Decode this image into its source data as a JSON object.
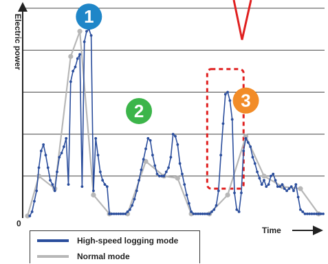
{
  "chart_data": {
    "type": "line",
    "xlabel": "Time",
    "ylabel": "Electric power",
    "origin_label": "0",
    "ylim": [
      0,
      10
    ],
    "grid": true,
    "colors": {
      "high_speed": "#2a4d9c",
      "normal": "#b7b7b7",
      "grid": "#444444",
      "badge_1": "#1f86c8",
      "badge_2": "#3cb54a",
      "badge_3": "#f28c28",
      "highlight": "#e02020"
    },
    "series": [
      {
        "key": "high_speed",
        "x": [
          1,
          2,
          3,
          4,
          5,
          6,
          7,
          8,
          9,
          10,
          11,
          12,
          13,
          14,
          15,
          16,
          17,
          18,
          19,
          20,
          21,
          22,
          23,
          24,
          25,
          26,
          27,
          28,
          29,
          30,
          31,
          32,
          33,
          34,
          35,
          36,
          37,
          38,
          39,
          40,
          41,
          42,
          43,
          44,
          45,
          46,
          47,
          48,
          49,
          50,
          51,
          52,
          53,
          54,
          55,
          56,
          57,
          58,
          59,
          60,
          61,
          62,
          63,
          64,
          65,
          66,
          67,
          68,
          69,
          70,
          71,
          72,
          73,
          74,
          75,
          76,
          77,
          78,
          79,
          80,
          81,
          82,
          83,
          84,
          85,
          86,
          87,
          88,
          89,
          90,
          91,
          92,
          93,
          94,
          95,
          96,
          97,
          98,
          99,
          100,
          101,
          102,
          103,
          104,
          105,
          106,
          107,
          108,
          109,
          110,
          111,
          112,
          113,
          114,
          115,
          116,
          117,
          118,
          119,
          120,
          121,
          122,
          123,
          124,
          125,
          126,
          127,
          128,
          129,
          130
        ],
        "values": [
          0.1,
          0.3,
          0.8,
          1.3,
          2.4,
          3.2,
          3.5,
          3.0,
          2.4,
          1.8,
          1.6,
          1.3,
          2.2,
          2.9,
          3.1,
          3.4,
          3.8,
          1.6,
          6.5,
          7.0,
          7.2,
          7.6,
          7.8,
          1.5,
          8.4,
          8.9,
          9.0,
          8.7,
          1.3,
          3.8,
          3.0,
          2.2,
          1.8,
          1.6,
          1.5,
          0.2,
          0.2,
          0.2,
          0.2,
          0.2,
          0.2,
          0.2,
          0.2,
          0.3,
          0.4,
          0.6,
          0.9,
          1.3,
          1.8,
          2.3,
          2.8,
          3.3,
          3.8,
          3.7,
          3.0,
          2.5,
          2.1,
          2.0,
          2.0,
          2.0,
          2.2,
          2.4,
          2.9,
          4.0,
          3.9,
          3.5,
          2.6,
          2.1,
          1.6,
          1.1,
          0.7,
          0.3,
          0.2,
          0.2,
          0.2,
          0.2,
          0.2,
          0.2,
          0.2,
          0.2,
          0.3,
          0.4,
          0.6,
          1.3,
          3.0,
          4.5,
          5.9,
          6.0,
          5.6,
          4.7,
          1.2,
          0.4,
          0.3,
          1.2,
          3.2,
          3.8,
          3.6,
          3.4,
          2.9,
          2.6,
          2.2,
          1.9,
          1.6,
          1.8,
          1.5,
          1.6,
          2.0,
          2.1,
          1.8,
          1.5,
          1.5,
          1.6,
          1.4,
          1.3,
          1.4,
          1.5,
          1.3,
          1.6,
          1.0,
          0.4,
          0.3,
          0.2,
          0.2,
          0.2,
          0.2,
          0.2,
          0.2,
          0.2,
          0.2,
          0.2
        ]
      },
      {
        "key": "normal",
        "x": [
          0,
          5,
          12,
          19,
          23,
          29,
          36,
          44,
          52,
          60,
          66,
          72,
          80,
          88,
          96,
          104,
          112,
          120,
          128
        ],
        "values": [
          0.1,
          2.0,
          1.4,
          7.7,
          8.9,
          1.1,
          0.2,
          0.2,
          2.7,
          2.0,
          1.9,
          0.2,
          0.2,
          1.1,
          3.9,
          2.0,
          1.5,
          1.4,
          0.2
        ]
      }
    ],
    "legend": [
      {
        "key": "high_speed",
        "label": "High-speed logging mode"
      },
      {
        "key": "normal",
        "label": "Normal mode"
      }
    ],
    "annotations": [
      {
        "label": "1",
        "x": 27,
        "y": 9.6,
        "color_key": "badge_1"
      },
      {
        "label": "2",
        "x": 49,
        "y": 5.1,
        "color_key": "badge_2"
      },
      {
        "label": "3",
        "x": 96,
        "y": 5.6,
        "color_key": "badge_3"
      }
    ],
    "highlight_region": {
      "x": [
        79,
        95
      ],
      "y": [
        1.4,
        7.1
      ]
    }
  }
}
